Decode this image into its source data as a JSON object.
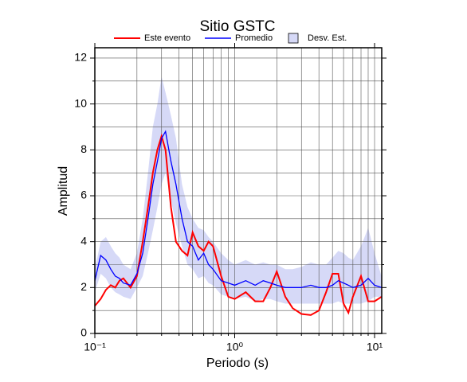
{
  "chart_data": {
    "type": "line",
    "title": "Sitio GSTC",
    "xlabel": "Periodo (s)",
    "ylabel": "Amplitud",
    "xscale": "log",
    "grid": true,
    "xlim": [
      0.1,
      11.25
    ],
    "ylim": [
      0,
      12.45
    ],
    "xticks": [
      {
        "value": 0.1,
        "label": "10⁻¹"
      },
      {
        "value": 1,
        "label": "10⁰"
      },
      {
        "value": 10,
        "label": "10¹"
      }
    ],
    "xminor": [
      0.2,
      0.3,
      0.4,
      0.5,
      0.6,
      0.7,
      0.8,
      0.9,
      2,
      3,
      4,
      5,
      6,
      7,
      8,
      9
    ],
    "yticks": [
      0,
      2,
      4,
      6,
      8,
      10,
      12
    ],
    "yminor": [
      1,
      3,
      5,
      7,
      9,
      11
    ],
    "x": [
      0.1,
      0.11,
      0.12,
      0.13,
      0.14,
      0.15,
      0.16,
      0.18,
      0.2,
      0.22,
      0.24,
      0.26,
      0.28,
      0.3,
      0.32,
      0.35,
      0.38,
      0.42,
      0.46,
      0.5,
      0.55,
      0.6,
      0.65,
      0.7,
      0.8,
      0.9,
      1.0,
      1.2,
      1.4,
      1.6,
      1.8,
      2.0,
      2.3,
      2.6,
      3.0,
      3.5,
      4.0,
      4.5,
      5.0,
      5.5,
      6.0,
      6.5,
      7.0,
      8.0,
      9.0,
      10,
      11.2
    ],
    "band": {
      "name": "Desv. Est.",
      "color": "#d6d9f7",
      "upper": [
        2.8,
        4.0,
        4.2,
        3.8,
        3.5,
        3.3,
        3.0,
        2.8,
        3.5,
        5.0,
        7.0,
        9.0,
        10.0,
        11.2,
        10.5,
        9.5,
        8.5,
        6.5,
        5.5,
        5.0,
        4.6,
        4.5,
        4.2,
        4.0,
        3.5,
        3.2,
        3.0,
        3.2,
        3.0,
        3.1,
        3.0,
        3.0,
        2.8,
        2.8,
        2.9,
        3.1,
        3.0,
        3.0,
        3.3,
        3.6,
        3.5,
        3.3,
        3.2,
        3.8,
        4.6,
        3.5,
        2.5
      ],
      "lower": [
        1.8,
        2.6,
        2.4,
        2.0,
        1.8,
        1.7,
        1.6,
        1.5,
        2.0,
        2.5,
        3.5,
        4.5,
        5.5,
        6.5,
        7.0,
        5.8,
        4.8,
        3.8,
        3.0,
        2.8,
        2.4,
        2.5,
        2.2,
        2.1,
        1.7,
        1.6,
        1.5,
        1.6,
        1.4,
        1.5,
        1.5,
        1.4,
        1.3,
        1.3,
        1.3,
        1.3,
        1.3,
        1.3,
        1.3,
        1.4,
        1.3,
        1.3,
        1.3,
        1.3,
        1.4,
        1.6,
        1.6
      ]
    },
    "series": [
      {
        "name": "Este evento",
        "color": "#ff0000",
        "values": [
          1.2,
          1.5,
          1.9,
          2.1,
          2.0,
          2.3,
          2.4,
          2.0,
          2.5,
          4.0,
          5.5,
          7.0,
          8.0,
          8.6,
          8.0,
          5.5,
          4.0,
          3.6,
          3.4,
          4.4,
          3.8,
          3.6,
          4.0,
          3.8,
          2.5,
          1.6,
          1.5,
          1.8,
          1.4,
          1.4,
          2.0,
          2.7,
          1.6,
          1.1,
          0.85,
          0.8,
          1.0,
          1.8,
          2.6,
          2.6,
          1.3,
          0.9,
          1.6,
          2.5,
          1.4,
          1.4,
          1.6
        ]
      },
      {
        "name": "Promedio",
        "color": "#0000ff",
        "values": [
          2.3,
          3.4,
          3.2,
          2.8,
          2.5,
          2.4,
          2.2,
          2.1,
          2.6,
          3.5,
          5.0,
          6.5,
          7.5,
          8.5,
          8.8,
          7.5,
          6.5,
          5.0,
          4.0,
          3.8,
          3.2,
          3.5,
          3.0,
          2.8,
          2.3,
          2.2,
          2.1,
          2.3,
          2.1,
          2.3,
          2.2,
          2.1,
          2.0,
          2.0,
          2.0,
          2.1,
          2.0,
          2.0,
          2.1,
          2.3,
          2.2,
          2.1,
          2.0,
          2.1,
          2.4,
          2.1,
          2.0
        ]
      }
    ]
  }
}
